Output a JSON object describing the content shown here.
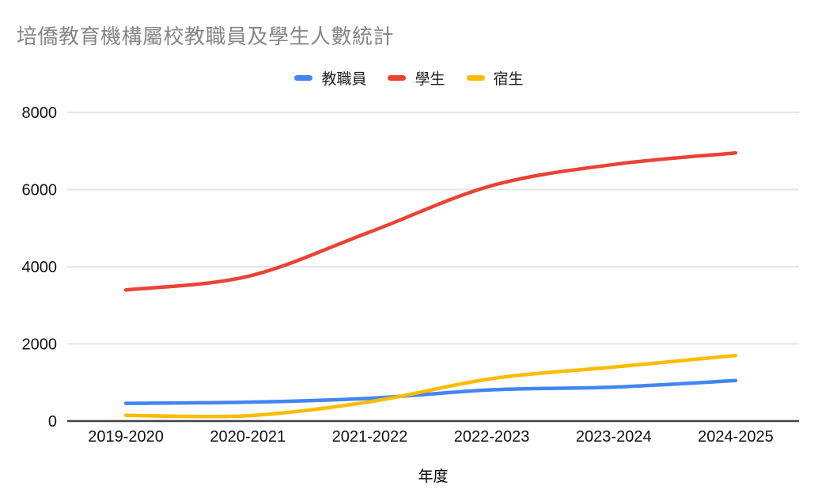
{
  "title": "培僑教育機構屬校教職員及學生人數統計",
  "chart_data": {
    "type": "line",
    "title": "培僑教育機構屬校教職員及學生人數統計",
    "categories": [
      "2019-2020",
      "2020-2021",
      "2021-2022",
      "2022-2023",
      "2023-2024",
      "2024-2025"
    ],
    "series": [
      {
        "key": "staff",
        "name": "教職員",
        "color": "#4285f4",
        "values": [
          460,
          490,
          590,
          810,
          880,
          1050
        ]
      },
      {
        "key": "students",
        "name": "學生",
        "color": "#ea4335",
        "values": [
          3400,
          3750,
          4900,
          6100,
          6650,
          6950
        ]
      },
      {
        "key": "boarders",
        "name": "宿生",
        "color": "#fbbc04",
        "values": [
          150,
          140,
          500,
          1100,
          1400,
          1700
        ]
      }
    ],
    "xlabel": "年度",
    "ylabel": "",
    "ylim": [
      0,
      8000
    ],
    "yticks": [
      0,
      2000,
      4000,
      6000,
      8000
    ],
    "grid": true,
    "legend_position": "top",
    "curve": "smooth"
  },
  "style_colors": {
    "title_text": "#868686",
    "gridline": "#e6e6e6",
    "baseline": "#424242",
    "tick_text": "#111111"
  }
}
